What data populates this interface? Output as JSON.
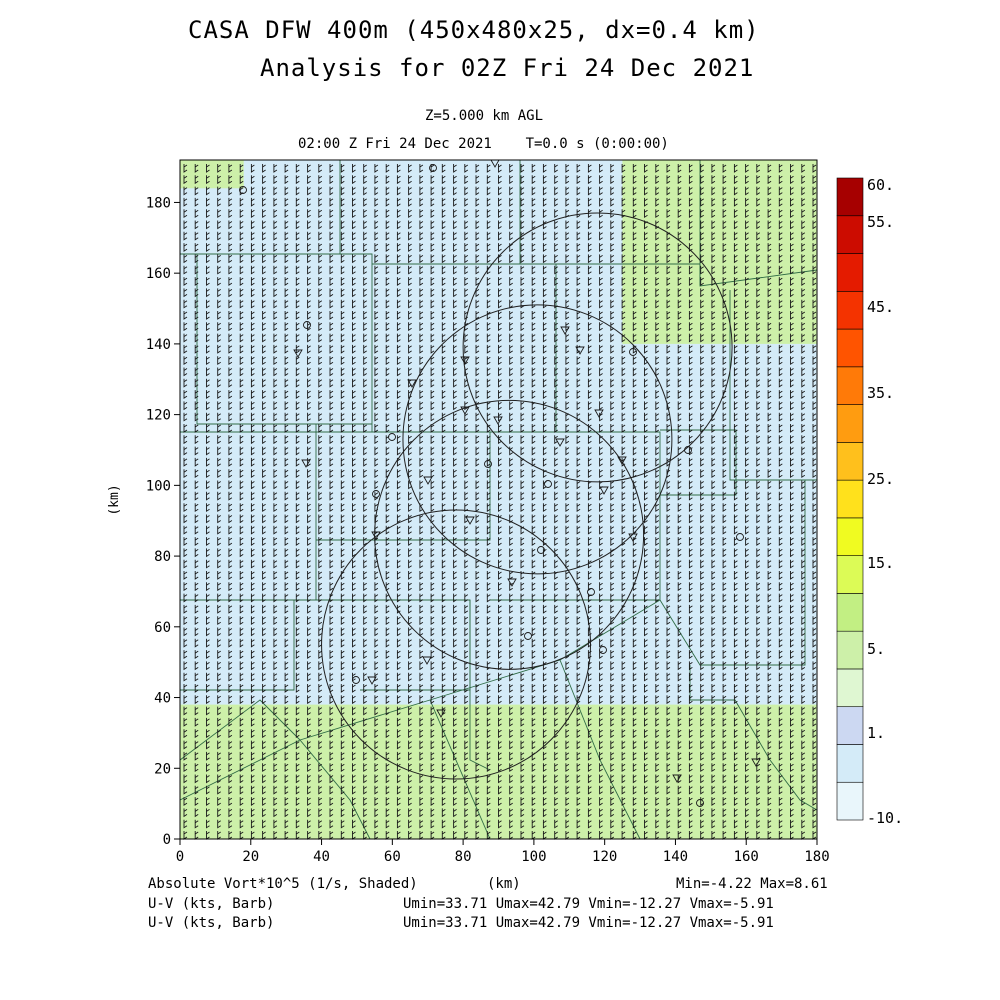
{
  "header": {
    "title_line1": "CASA DFW 400m (450x480x25, dx=0.4 km)",
    "title_line2": "Analysis for 02Z Fri 24 Dec 2021",
    "level": "Z=5.000 km AGL",
    "time": "02:00 Z Fri 24 Dec 2021    T=0.0 s (0:00:00)"
  },
  "footer": {
    "field1": "Absolute Vort*10^5 (1/s, Shaded)",
    "field2": "U-V (kts, Barb)",
    "field3": "U-V (kts, Barb)",
    "xunit": "(km)",
    "minmax": "Min=-4.22 Max=8.61",
    "uv1": "Umin=33.71 Umax=42.79 Vmin=-12.27 Vmax=-5.91",
    "uv2": "Umin=33.71 Umax=42.79 Vmin=-12.27 Vmax=-5.91"
  },
  "chart_data": {
    "type": "heatmap",
    "title": "CASA DFW 400m (450x480x25, dx=0.4 km)",
    "subtitle": "Analysis for 02Z Fri 24 Dec 2021",
    "xlabel": "(km)",
    "ylabel": "(km)",
    "xlim": [
      0,
      180
    ],
    "ylim": [
      0,
      192
    ],
    "x_ticks": [
      0,
      20,
      40,
      60,
      80,
      100,
      120,
      140,
      160,
      180
    ],
    "y_ticks": [
      0,
      20,
      40,
      60,
      80,
      100,
      120,
      140,
      160,
      180
    ],
    "x_tick_labels": [
      "0",
      "20",
      "40",
      "60",
      "80",
      "100",
      "120",
      "140",
      "160",
      "180"
    ],
    "y_tick_labels": [
      "0",
      "20",
      "40",
      "60",
      "80",
      "100",
      "120",
      "140",
      "160",
      "180"
    ],
    "colorbar": {
      "labels": [
        {
          "text": "60.",
          "level": 60
        },
        {
          "text": "55.",
          "level": 55
        },
        {
          "text": "45.",
          "level": 45
        },
        {
          "text": "35.",
          "level": 35
        },
        {
          "text": "25.",
          "level": 25
        },
        {
          "text": "15.",
          "level": 15
        },
        {
          "text": "5.",
          "level": 5
        },
        {
          "text": "1.",
          "level": 1
        },
        {
          "text": "-10.",
          "level": -10
        }
      ],
      "colors_bottom_to_top": [
        "#e9f6fb",
        "#d4ebf8",
        "#ccd8f2",
        "#dff7d2",
        "#cdf0a9",
        "#c2ef83",
        "#dcfb56",
        "#f0fb21",
        "#ffe11c",
        "#ffc01c",
        "#ff9c10",
        "#ff7a08",
        "#ff5400",
        "#f43300",
        "#e41b00",
        "#cc0c00",
        "#a60000"
      ]
    },
    "field_range": {
      "min": -4.22,
      "max": 8.61
    },
    "wind": {
      "umin": 33.71,
      "umax": 42.79,
      "vmin": -12.27,
      "vmax": -5.91
    },
    "shaded_regions": [
      {
        "name": "lower-band",
        "color": "#cdf0a9",
        "x": [
          0,
          180
        ],
        "y": [
          0,
          38
        ]
      },
      {
        "name": "upper-left-green",
        "color": "#cdf0a9",
        "x": [
          0,
          18
        ],
        "y": [
          184,
          192
        ]
      },
      {
        "name": "upper-right-green",
        "color": "#cdf0a9",
        "x": [
          125,
          180
        ],
        "y": [
          140,
          192
        ]
      }
    ],
    "radar_rings": [
      {
        "center": [
          78,
          55
        ],
        "radius": 38
      },
      {
        "center": [
          93,
          86
        ],
        "radius": 38
      },
      {
        "center": [
          101,
          113
        ],
        "radius": 38
      },
      {
        "center": [
          118,
          139
        ],
        "radius": 38
      }
    ]
  }
}
